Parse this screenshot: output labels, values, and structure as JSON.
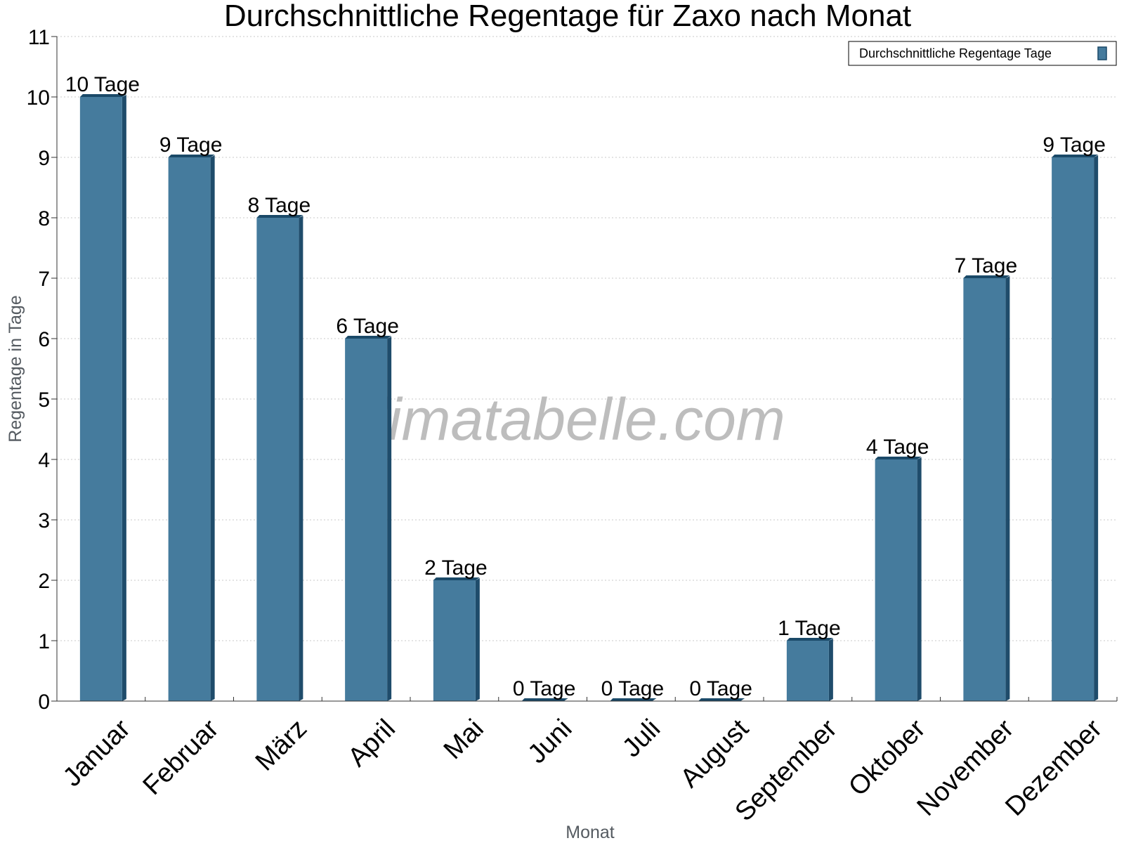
{
  "chart_data": {
    "type": "bar",
    "title": "Durchschnittliche Regentage für Zaxo nach Monat",
    "xlabel": "Monat",
    "ylabel": "Regentage in Tage",
    "ylim": [
      0,
      11
    ],
    "yticks": [
      "0",
      "1",
      "2",
      "3",
      "4",
      "5",
      "6",
      "7",
      "8",
      "9",
      "10",
      "11"
    ],
    "categories": [
      "Januar",
      "Februar",
      "März",
      "April",
      "Mai",
      "Juni",
      "Juli",
      "August",
      "September",
      "Oktober",
      "November",
      "Dezember"
    ],
    "series": [
      {
        "name": "Durchschnittliche Regentage Tage",
        "values": [
          10,
          9,
          8,
          6,
          2,
          0,
          0,
          0,
          1,
          4,
          7,
          9
        ],
        "labels": [
          "10 Tage",
          "9 Tage",
          "8 Tage",
          "6 Tage",
          "2 Tage",
          "0 Tage",
          "0 Tage",
          "0 Tage",
          "1 Tage",
          "4 Tage",
          "7 Tage",
          "9 Tage"
        ],
        "color": "#457b9d"
      }
    ],
    "grid": true,
    "legend_position": "top-right",
    "watermark": "klimatabelle.com"
  }
}
